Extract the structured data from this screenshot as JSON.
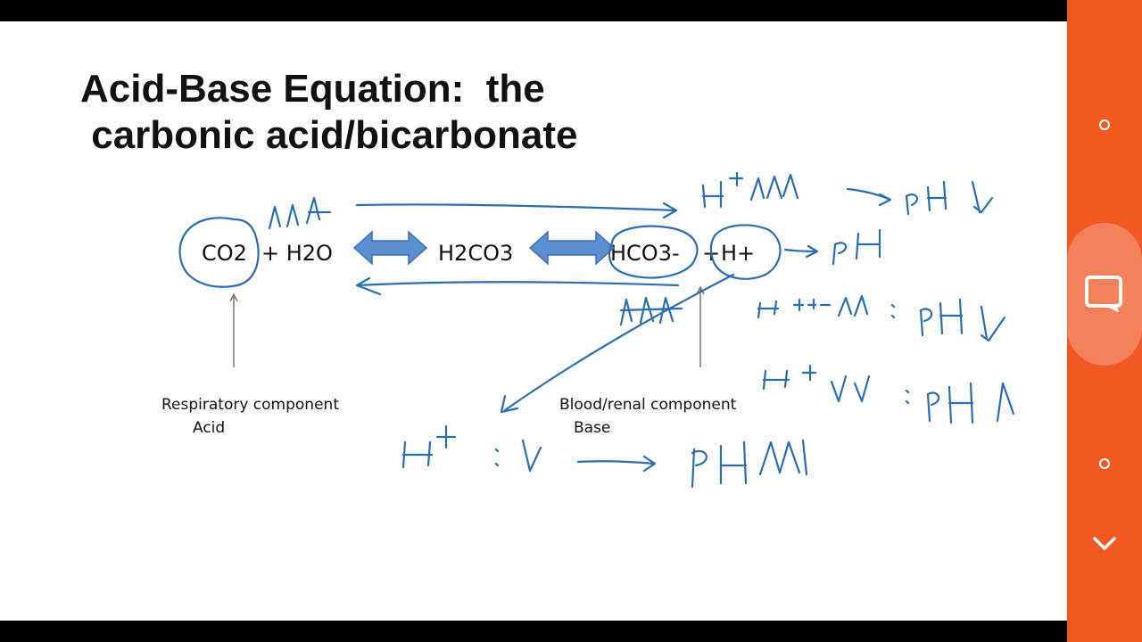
{
  "slide": {
    "title": "Acid-Base Equation:  the\n carbonic acid/bicarbonate",
    "equation": {
      "co2": "CO2",
      "plus1": "+ H2O",
      "h2co3": "H2CO3",
      "hco3": "HCO3-",
      "plus2": "+",
      "h_plus": "H+"
    },
    "respiratory_label": "Respiratory component",
    "respiratory_sub": "Acid",
    "renal_label": "Blood/renal component",
    "renal_sub": "Base"
  },
  "colors": {
    "ink": "#2a6db0",
    "arrow_fill": "#5b8fd0",
    "panel": "#f25822",
    "panel_highlight": "#f5815a"
  },
  "side_panel": {
    "icons": [
      "circle-icon",
      "note-icon",
      "circle-icon",
      "chevron-down-icon"
    ]
  }
}
